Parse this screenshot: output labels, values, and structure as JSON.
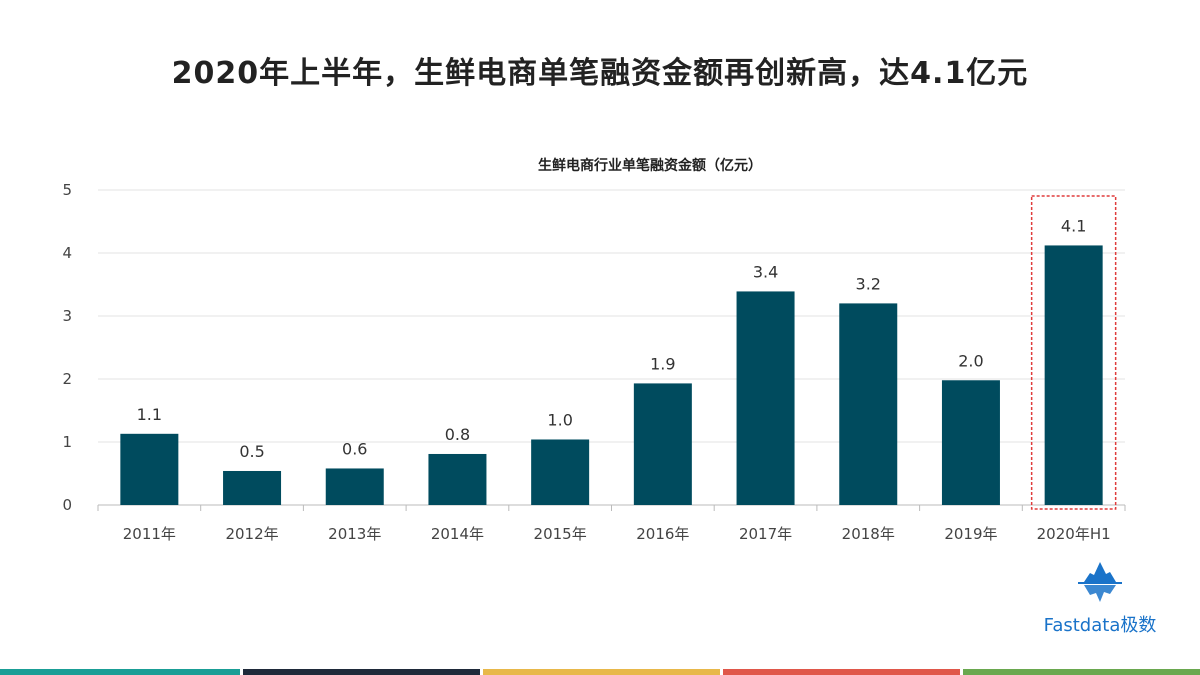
{
  "page": {
    "title": "2020年上半年，生鲜电商单笔融资金额再创新高，达4.1亿元"
  },
  "chart_data": {
    "type": "bar",
    "title": "生鲜电商行业单笔融资金额（亿元）",
    "categories": [
      "2011年",
      "2012年",
      "2013年",
      "2014年",
      "2015年",
      "2016年",
      "2017年",
      "2018年",
      "2019年",
      "2020年H1"
    ],
    "values": [
      1.13,
      0.54,
      0.58,
      0.81,
      1.04,
      1.93,
      3.39,
      3.2,
      1.98,
      4.12
    ],
    "data_labels": [
      "1.1",
      "0.5",
      "0.6",
      "0.8",
      "1.0",
      "1.9",
      "3.4",
      "3.2",
      "2.0",
      "4.1"
    ],
    "ylim": [
      0,
      5
    ],
    "yticks": [
      0,
      1,
      2,
      3,
      4,
      5
    ],
    "grid": true,
    "bar_color": "#004b5e",
    "highlight_index": 9,
    "highlight_color": "#e03b3b"
  },
  "brand": {
    "name": "Fastdata极数",
    "color": "#1a73c9"
  },
  "footer_colors": [
    "#1a9e96",
    "#1f2a3a",
    "#e8b84a",
    "#e0574a",
    "#6aa84f"
  ]
}
